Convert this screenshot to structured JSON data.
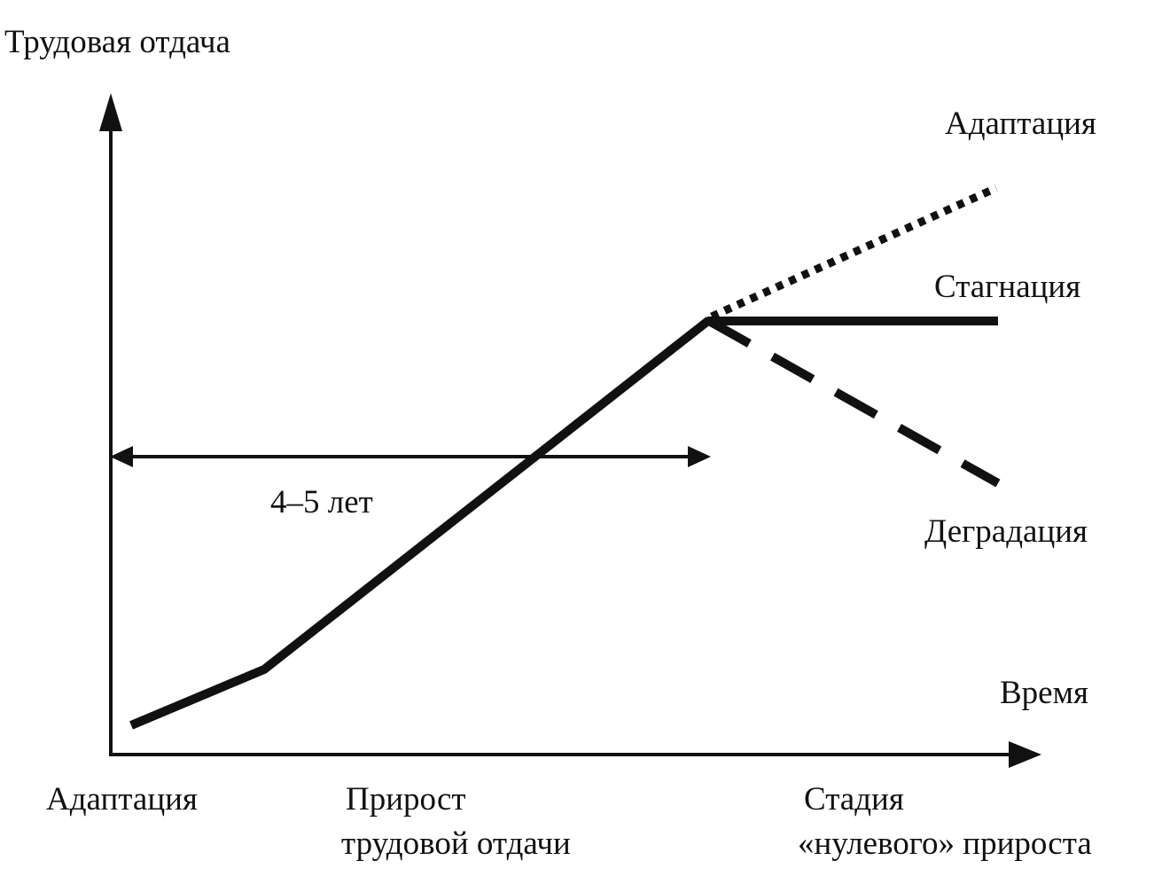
{
  "axes": {
    "y_label": "Трудовая отдача",
    "x_label": "Время"
  },
  "outcomes": {
    "adaptation": "Адаптация",
    "stagnation": "Стагнация",
    "degradation": "Деградация"
  },
  "duration_label": "4–5 лет",
  "stages": {
    "adaptation": "Адаптация",
    "growth_line1": "Прирост",
    "growth_line2": "трудовой отдачи",
    "zero_line1": "Стадия",
    "zero_line2": "«нулевого» прироста"
  },
  "colors": {
    "ink": "#111111",
    "background": "#ffffff"
  }
}
